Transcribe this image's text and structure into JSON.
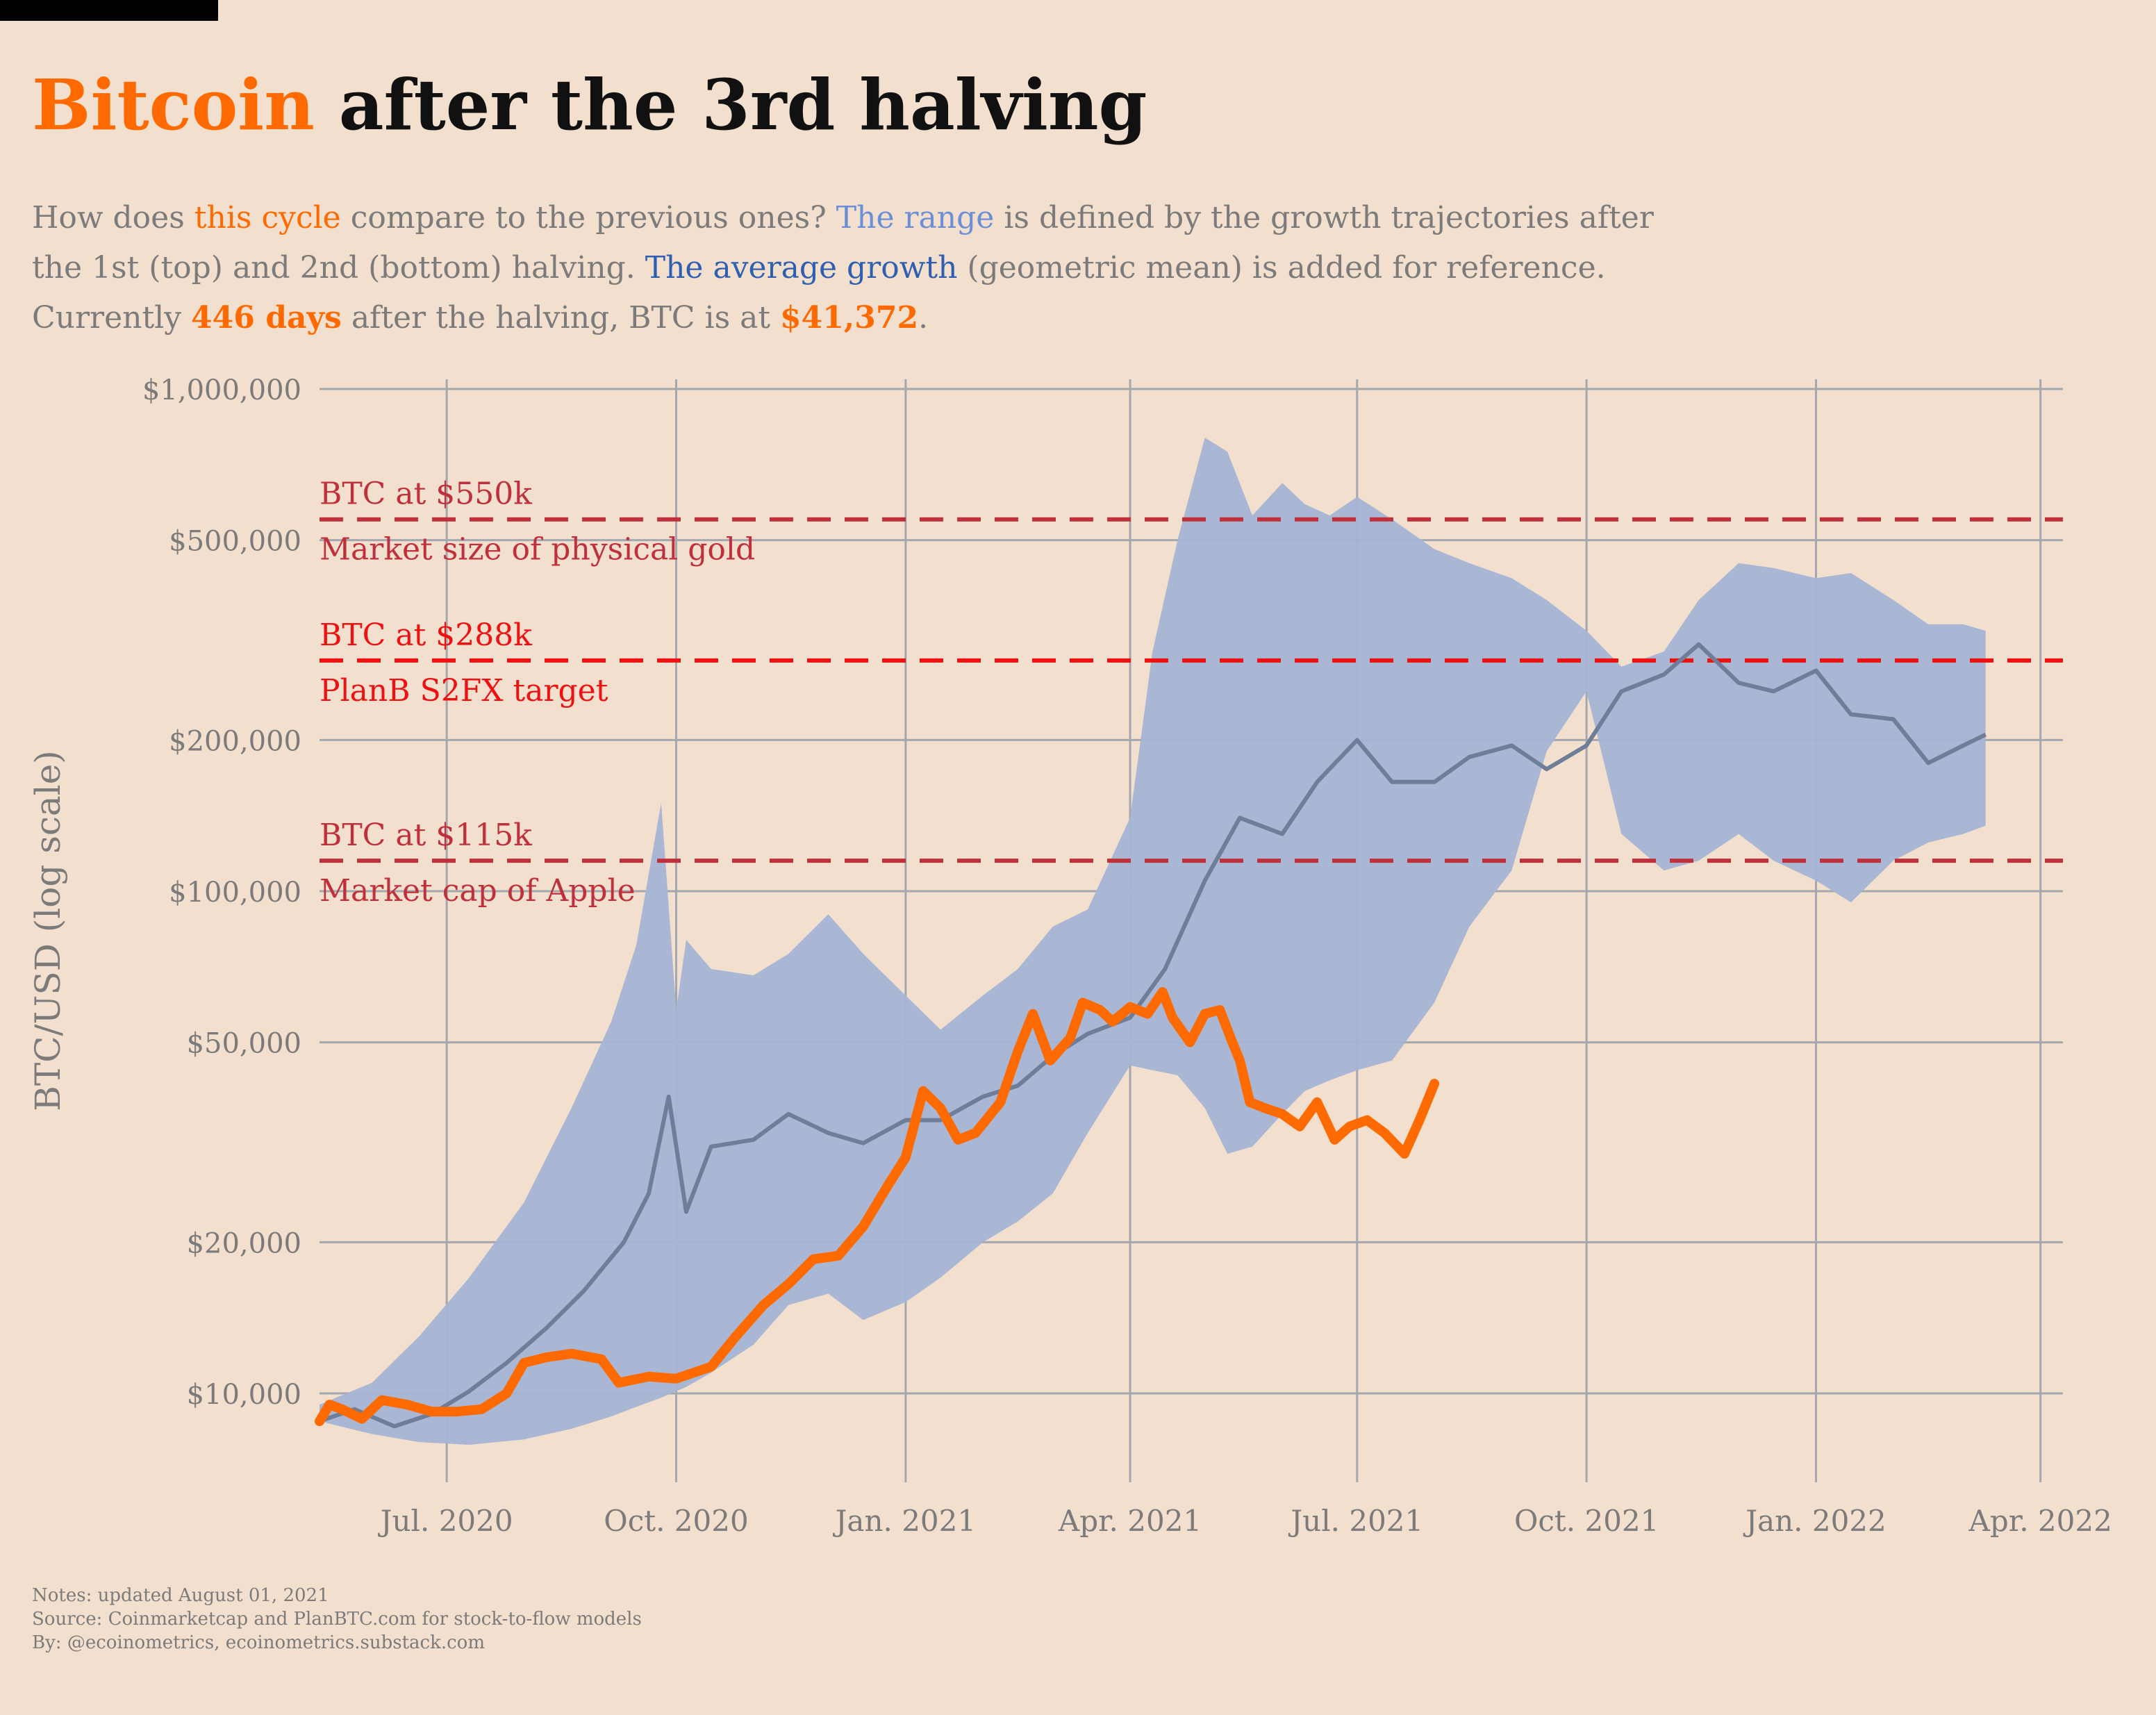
{
  "header": {
    "title_highlight": "Bitcoin",
    "title_rest": " after the 3rd halving"
  },
  "subtitle": {
    "p1": "How does ",
    "this_cycle": "this cycle",
    "p2": " compare to the previous ones? ",
    "the_range": "The range",
    "p3": " is defined by the growth trajectories after the 1st (top) and 2nd (bottom) halving. ",
    "average_growth": "The average growth",
    "p4": " (geometric mean) is added for reference. Currently ",
    "days": "446 days",
    "p5": " after the halving, BTC is at ",
    "price": "$41,372",
    "p6": "."
  },
  "notes": {
    "line1": "Notes: updated August 01, 2021",
    "line2": "Source: Coinmarketcap and PlanBTC.com for stock-to-flow models",
    "line3": "By: @ecoinometrics, ecoinometrics.substack.com"
  },
  "colors": {
    "background": "#f2dfce",
    "this_cycle": "#ff6a00",
    "range_band": "#a4b4d4",
    "average": "#6e7e99",
    "ref_line_dark": "#c0303a",
    "ref_line_bright": "#ee1111",
    "grid": "#a3a8b0"
  },
  "chart_data": {
    "type": "line",
    "title": "",
    "ylabel": "BTC/USD (log scale)",
    "yscale": "log",
    "xlim": [
      "2020-05-11",
      "2022-04-10"
    ],
    "ylim": [
      7000,
      1000000
    ],
    "x_ticks": [
      {
        "date": "2020-07-01",
        "label": "Jul. 2020"
      },
      {
        "date": "2020-10-01",
        "label": "Oct. 2020"
      },
      {
        "date": "2021-01-01",
        "label": "Jan. 2021"
      },
      {
        "date": "2021-04-01",
        "label": "Apr. 2021"
      },
      {
        "date": "2021-07-01",
        "label": "Jul. 2021"
      },
      {
        "date": "2021-10-01",
        "label": "Oct. 2021"
      },
      {
        "date": "2022-01-01",
        "label": "Jan. 2022"
      },
      {
        "date": "2022-04-01",
        "label": "Apr. 2022"
      }
    ],
    "y_ticks": [
      {
        "value": 10000,
        "label": "$10,000"
      },
      {
        "value": 20000,
        "label": "$20,000"
      },
      {
        "value": 50000,
        "label": "$50,000"
      },
      {
        "value": 100000,
        "label": "$100,000"
      },
      {
        "value": 200000,
        "label": "$200,000"
      },
      {
        "value": 500000,
        "label": "$500,000"
      },
      {
        "value": 1000000,
        "label": "$1,000,000"
      }
    ],
    "reference_lines": [
      {
        "value": 550000,
        "label_above": "BTC at $550k",
        "label_below": "Market size of physical gold",
        "style": "dark"
      },
      {
        "value": 288000,
        "label_above": "BTC at $288k",
        "label_below": "PlanB S2FX target",
        "style": "bright"
      },
      {
        "value": 115000,
        "label_above": "BTC at $115k",
        "label_below": "Market cap of Apple",
        "style": "dark"
      }
    ],
    "series": [
      {
        "key": "range",
        "kind": "band",
        "x": [
          "2020-05-11",
          "2020-06-01",
          "2020-06-20",
          "2020-07-10",
          "2020-08-01",
          "2020-08-20",
          "2020-09-05",
          "2020-09-15",
          "2020-09-25",
          "2020-10-01",
          "2020-10-05",
          "2020-10-15",
          "2020-11-01",
          "2020-11-15",
          "2020-12-01",
          "2020-12-15",
          "2021-01-01",
          "2021-01-15",
          "2021-02-01",
          "2021-02-15",
          "2021-03-01",
          "2021-03-15",
          "2021-04-01",
          "2021-04-10",
          "2021-04-20",
          "2021-05-01",
          "2021-05-10",
          "2021-05-20",
          "2021-06-01",
          "2021-06-10",
          "2021-06-20",
          "2021-07-01",
          "2021-07-15",
          "2021-08-01",
          "2021-08-15",
          "2021-09-01",
          "2021-09-15",
          "2021-10-01",
          "2021-10-15",
          "2021-11-01",
          "2021-11-15",
          "2021-12-01",
          "2021-12-15",
          "2022-01-01",
          "2022-01-15",
          "2022-02-01",
          "2022-02-15",
          "2022-03-01",
          "2022-03-10"
        ],
        "upper": [
          9500,
          10500,
          13000,
          17000,
          24000,
          37000,
          55000,
          78000,
          150000,
          58000,
          80000,
          70000,
          68000,
          75000,
          90000,
          75000,
          62000,
          53000,
          62000,
          70000,
          85000,
          92000,
          140000,
          300000,
          500000,
          800000,
          750000,
          560000,
          650000,
          590000,
          560000,
          610000,
          550000,
          480000,
          450000,
          420000,
          380000,
          330000,
          280000,
          300000,
          380000,
          450000,
          440000,
          420000,
          430000,
          380000,
          340000,
          340000,
          330000
        ],
        "lower": [
          8800,
          8300,
          8000,
          7900,
          8100,
          8500,
          9000,
          9400,
          9800,
          10100,
          10300,
          11000,
          12500,
          15000,
          15800,
          14000,
          15200,
          17000,
          20000,
          22000,
          25000,
          33000,
          45000,
          44000,
          43000,
          37000,
          30000,
          31000,
          36000,
          40000,
          42000,
          44000,
          46000,
          60000,
          85000,
          110000,
          190000,
          250000,
          130000,
          110000,
          115000,
          130000,
          115000,
          105000,
          95000,
          115000,
          125000,
          130000,
          135000
        ]
      },
      {
        "key": "average",
        "name": "The average growth",
        "kind": "line",
        "x": [
          "2020-05-11",
          "2020-05-25",
          "2020-06-10",
          "2020-06-25",
          "2020-07-10",
          "2020-07-25",
          "2020-08-10",
          "2020-08-25",
          "2020-09-10",
          "2020-09-20",
          "2020-09-28",
          "2020-10-05",
          "2020-10-15",
          "2020-11-01",
          "2020-11-15",
          "2020-12-01",
          "2020-12-15",
          "2021-01-01",
          "2021-01-15",
          "2021-02-01",
          "2021-02-15",
          "2021-03-01",
          "2021-03-15",
          "2021-04-01",
          "2021-04-15",
          "2021-05-01",
          "2021-05-15",
          "2021-06-01",
          "2021-06-15",
          "2021-07-01",
          "2021-07-15",
          "2021-08-01",
          "2021-08-15",
          "2021-09-01",
          "2021-09-15",
          "2021-10-01",
          "2021-10-15",
          "2021-11-01",
          "2021-11-15",
          "2021-12-01",
          "2021-12-15",
          "2022-01-01",
          "2022-01-15",
          "2022-02-01",
          "2022-02-15",
          "2022-03-01",
          "2022-03-10"
        ],
        "y": [
          8800,
          9300,
          8600,
          9100,
          10100,
          11500,
          13500,
          16000,
          20000,
          25000,
          39000,
          23000,
          31000,
          32000,
          36000,
          33000,
          31500,
          35000,
          35000,
          39000,
          41000,
          47000,
          52000,
          56000,
          70000,
          105000,
          140000,
          130000,
          165000,
          200000,
          165000,
          165000,
          185000,
          195000,
          175000,
          195000,
          250000,
          270000,
          310000,
          260000,
          250000,
          275000,
          225000,
          220000,
          180000,
          195000,
          205000
        ]
      },
      {
        "key": "this_cycle",
        "name": "this cycle",
        "kind": "line",
        "x": [
          "2020-05-11",
          "2020-05-15",
          "2020-05-20",
          "2020-05-28",
          "2020-06-05",
          "2020-06-15",
          "2020-06-25",
          "2020-07-05",
          "2020-07-15",
          "2020-07-25",
          "2020-08-01",
          "2020-08-10",
          "2020-08-20",
          "2020-09-01",
          "2020-09-08",
          "2020-09-20",
          "2020-10-01",
          "2020-10-15",
          "2020-10-25",
          "2020-11-05",
          "2020-11-15",
          "2020-11-25",
          "2020-12-05",
          "2020-12-15",
          "2020-12-25",
          "2021-01-01",
          "2021-01-08",
          "2021-01-15",
          "2021-01-22",
          "2021-01-29",
          "2021-02-08",
          "2021-02-15",
          "2021-02-21",
          "2021-02-28",
          "2021-03-08",
          "2021-03-13",
          "2021-03-20",
          "2021-03-25",
          "2021-04-01",
          "2021-04-08",
          "2021-04-14",
          "2021-04-18",
          "2021-04-25",
          "2021-05-01",
          "2021-05-07",
          "2021-05-12",
          "2021-05-15",
          "2021-05-19",
          "2021-05-25",
          "2021-06-01",
          "2021-06-08",
          "2021-06-15",
          "2021-06-22",
          "2021-06-28",
          "2021-07-05",
          "2021-07-12",
          "2021-07-20",
          "2021-07-26",
          "2021-08-01"
        ],
        "y": [
          8800,
          9500,
          9300,
          8900,
          9700,
          9500,
          9200,
          9200,
          9300,
          10000,
          11500,
          11800,
          12000,
          11700,
          10500,
          10800,
          10700,
          11300,
          13000,
          15000,
          16500,
          18500,
          18800,
          21500,
          26000,
          29500,
          40000,
          37000,
          32000,
          33000,
          38000,
          48000,
          57000,
          46000,
          51000,
          60000,
          58000,
          55000,
          58800,
          57000,
          63000,
          56000,
          50000,
          57000,
          58000,
          50000,
          46000,
          38000,
          37000,
          36000,
          34000,
          38000,
          32000,
          34000,
          35000,
          33000,
          30000,
          35000,
          41372
        ]
      }
    ]
  }
}
